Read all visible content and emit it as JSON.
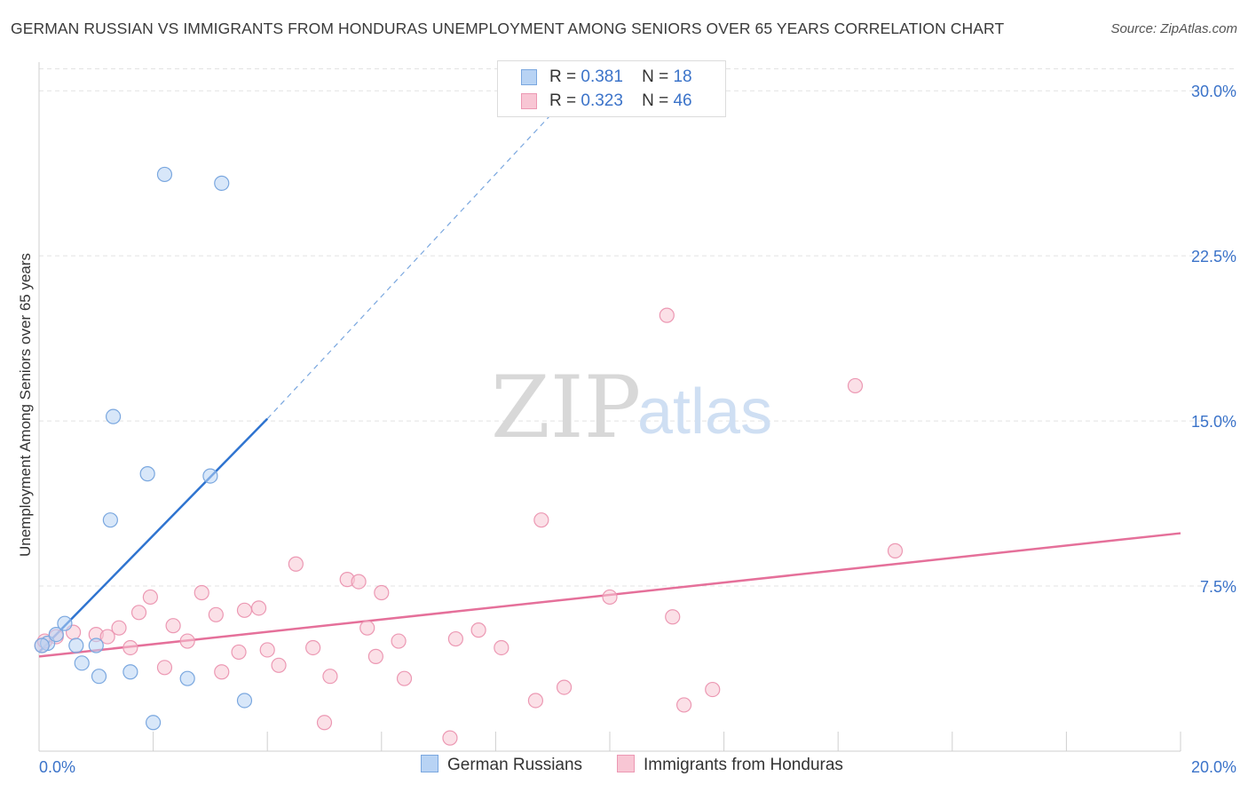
{
  "title": "GERMAN RUSSIAN VS IMMIGRANTS FROM HONDURAS UNEMPLOYMENT AMONG SENIORS OVER 65 YEARS CORRELATION CHART",
  "source": "Source: ZipAtlas.com",
  "watermark": {
    "zip": "ZIP",
    "atlas": "atlas"
  },
  "legend": {
    "rows": [
      {
        "r_label": "R =",
        "r_value": "0.381",
        "n_label": "N =",
        "n_value": "18"
      },
      {
        "r_label": "R =",
        "r_value": "0.323",
        "n_label": "N =",
        "n_value": "46"
      }
    ]
  },
  "bottom_legend": [
    "German Russians",
    "Immigrants from Honduras"
  ],
  "colors": {
    "blue_fill": "#b8d3f4",
    "blue_stroke": "#7aa7df",
    "blue_line": "#2f74d0",
    "pink_fill": "#f8c6d4",
    "pink_stroke": "#ec98b3",
    "pink_line": "#e5709a",
    "grid": "#e3e3e3",
    "tick_text": "#3b73c9"
  },
  "chart_data": {
    "type": "scatter",
    "title": "GERMAN RUSSIAN VS IMMIGRANTS FROM HONDURAS UNEMPLOYMENT AMONG SENIORS OVER 65 YEARS CORRELATION CHART",
    "xlabel": "",
    "ylabel": "Unemployment Among Seniors over 65 years",
    "xlim": [
      0,
      20
    ],
    "ylim": [
      0,
      31.3
    ],
    "x_tick_labels": [
      "0.0%",
      "20.0%"
    ],
    "y_ticks": [
      7.5,
      15.0,
      22.5,
      30.0
    ],
    "y_tick_labels": [
      "7.5%",
      "15.0%",
      "22.5%",
      "30.0%"
    ],
    "series": [
      {
        "name": "German Russians",
        "color": "blue",
        "points": [
          [
            0.15,
            4.9
          ],
          [
            0.3,
            5.3
          ],
          [
            0.45,
            5.8
          ],
          [
            0.65,
            4.8
          ],
          [
            0.75,
            4.0
          ],
          [
            1.0,
            4.8
          ],
          [
            1.05,
            3.4
          ],
          [
            1.25,
            10.5
          ],
          [
            1.3,
            15.2
          ],
          [
            1.6,
            3.6
          ],
          [
            1.9,
            12.6
          ],
          [
            2.0,
            1.3
          ],
          [
            2.2,
            26.2
          ],
          [
            2.6,
            3.3
          ],
          [
            3.0,
            12.5
          ],
          [
            3.2,
            25.8
          ],
          [
            3.6,
            2.3
          ],
          [
            0.05,
            4.8
          ]
        ],
        "trend": {
          "x": [
            0.0,
            4.0
          ],
          "y": [
            4.5,
            15.1
          ],
          "extended": {
            "x": [
              4.0,
              9.0
            ],
            "y": [
              15.1,
              29.0
            ]
          }
        }
      },
      {
        "name": "Immigrants from Honduras",
        "color": "pink",
        "points": [
          [
            0.05,
            4.8
          ],
          [
            0.3,
            5.2
          ],
          [
            0.6,
            5.4
          ],
          [
            1.0,
            5.3
          ],
          [
            1.2,
            5.2
          ],
          [
            1.4,
            5.6
          ],
          [
            1.6,
            4.7
          ],
          [
            1.75,
            6.3
          ],
          [
            1.95,
            7.0
          ],
          [
            2.2,
            3.8
          ],
          [
            2.35,
            5.7
          ],
          [
            2.6,
            5.0
          ],
          [
            2.85,
            7.2
          ],
          [
            3.1,
            6.2
          ],
          [
            3.2,
            3.6
          ],
          [
            3.5,
            4.5
          ],
          [
            3.6,
            6.4
          ],
          [
            3.85,
            6.5
          ],
          [
            4.0,
            4.6
          ],
          [
            4.2,
            3.9
          ],
          [
            4.5,
            8.5
          ],
          [
            4.8,
            4.7
          ],
          [
            5.0,
            1.3
          ],
          [
            5.1,
            3.4
          ],
          [
            5.4,
            7.8
          ],
          [
            5.6,
            7.7
          ],
          [
            5.75,
            5.6
          ],
          [
            5.9,
            4.3
          ],
          [
            6.0,
            7.2
          ],
          [
            6.3,
            5.0
          ],
          [
            6.4,
            3.3
          ],
          [
            7.2,
            0.6
          ],
          [
            7.3,
            5.1
          ],
          [
            7.7,
            5.5
          ],
          [
            8.1,
            4.7
          ],
          [
            8.7,
            2.3
          ],
          [
            8.8,
            10.5
          ],
          [
            9.2,
            2.9
          ],
          [
            10.0,
            7.0
          ],
          [
            11.0,
            19.8
          ],
          [
            11.1,
            6.1
          ],
          [
            11.3,
            2.1
          ],
          [
            11.8,
            2.8
          ],
          [
            14.3,
            16.6
          ],
          [
            15.0,
            9.1
          ],
          [
            0.1,
            5.0
          ]
        ],
        "trend": {
          "x": [
            0.0,
            20.0
          ],
          "y": [
            4.3,
            9.9
          ]
        }
      }
    ]
  }
}
